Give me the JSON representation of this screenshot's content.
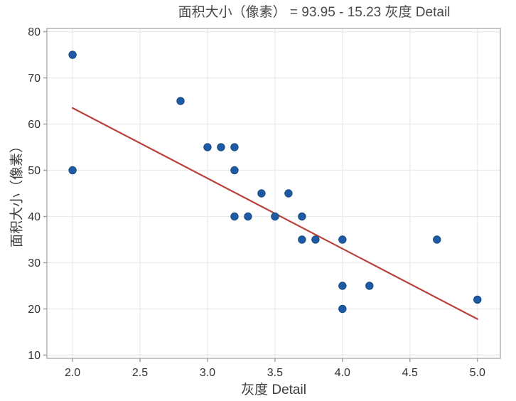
{
  "window": {
    "background": "#ffffff"
  },
  "chart_data": {
    "type": "scatter",
    "title": "面积大小（像素） = 93.95 - 15.23 灰度 Detail",
    "xlabel": "灰度 Detail",
    "ylabel": "面积大小（像素）",
    "xlim": [
      1.81,
      5.17
    ],
    "ylim": [
      9.3,
      80.7
    ],
    "xticks": [
      2.0,
      2.5,
      3.0,
      3.5,
      4.0,
      4.5,
      5.0
    ],
    "xtick_labels": [
      "2.0",
      "2.5",
      "3.0",
      "3.5",
      "4.0",
      "4.5",
      "5.0"
    ],
    "yticks": [
      10,
      20,
      30,
      40,
      50,
      60,
      70,
      80
    ],
    "ytick_labels": [
      "10",
      "20",
      "30",
      "40",
      "50",
      "60",
      "70",
      "80"
    ],
    "grid": true,
    "legend": "none",
    "points": [
      [
        2.0,
        75
      ],
      [
        2.0,
        50
      ],
      [
        2.8,
        65
      ],
      [
        3.0,
        55
      ],
      [
        3.1,
        55
      ],
      [
        3.2,
        55
      ],
      [
        3.2,
        50
      ],
      [
        3.4,
        45
      ],
      [
        3.6,
        45
      ],
      [
        3.2,
        40
      ],
      [
        3.3,
        40
      ],
      [
        3.5,
        40
      ],
      [
        3.7,
        40
      ],
      [
        3.7,
        35
      ],
      [
        3.8,
        35
      ],
      [
        4.0,
        35
      ],
      [
        4.7,
        35
      ],
      [
        4.0,
        25
      ],
      [
        4.2,
        25
      ],
      [
        4.0,
        20
      ],
      [
        5.0,
        22
      ]
    ],
    "regression_line": {
      "equation": "面积大小（像素） = 93.95 - 15.23 灰度 Detail",
      "intercept": 93.95,
      "slope": -15.23,
      "x_start": 2.0,
      "x_end": 5.0
    },
    "colors": {
      "point_fill": "#1e5aa5",
      "point_edge": "#17497f",
      "line": "#b8423a",
      "grid": "#ebebeb",
      "frame": "#b3b3b3",
      "tick": "#a3a3a3",
      "title_text": "#4a4a4a",
      "tick_text": "#323232",
      "label_text": "#3c3c3c"
    }
  }
}
